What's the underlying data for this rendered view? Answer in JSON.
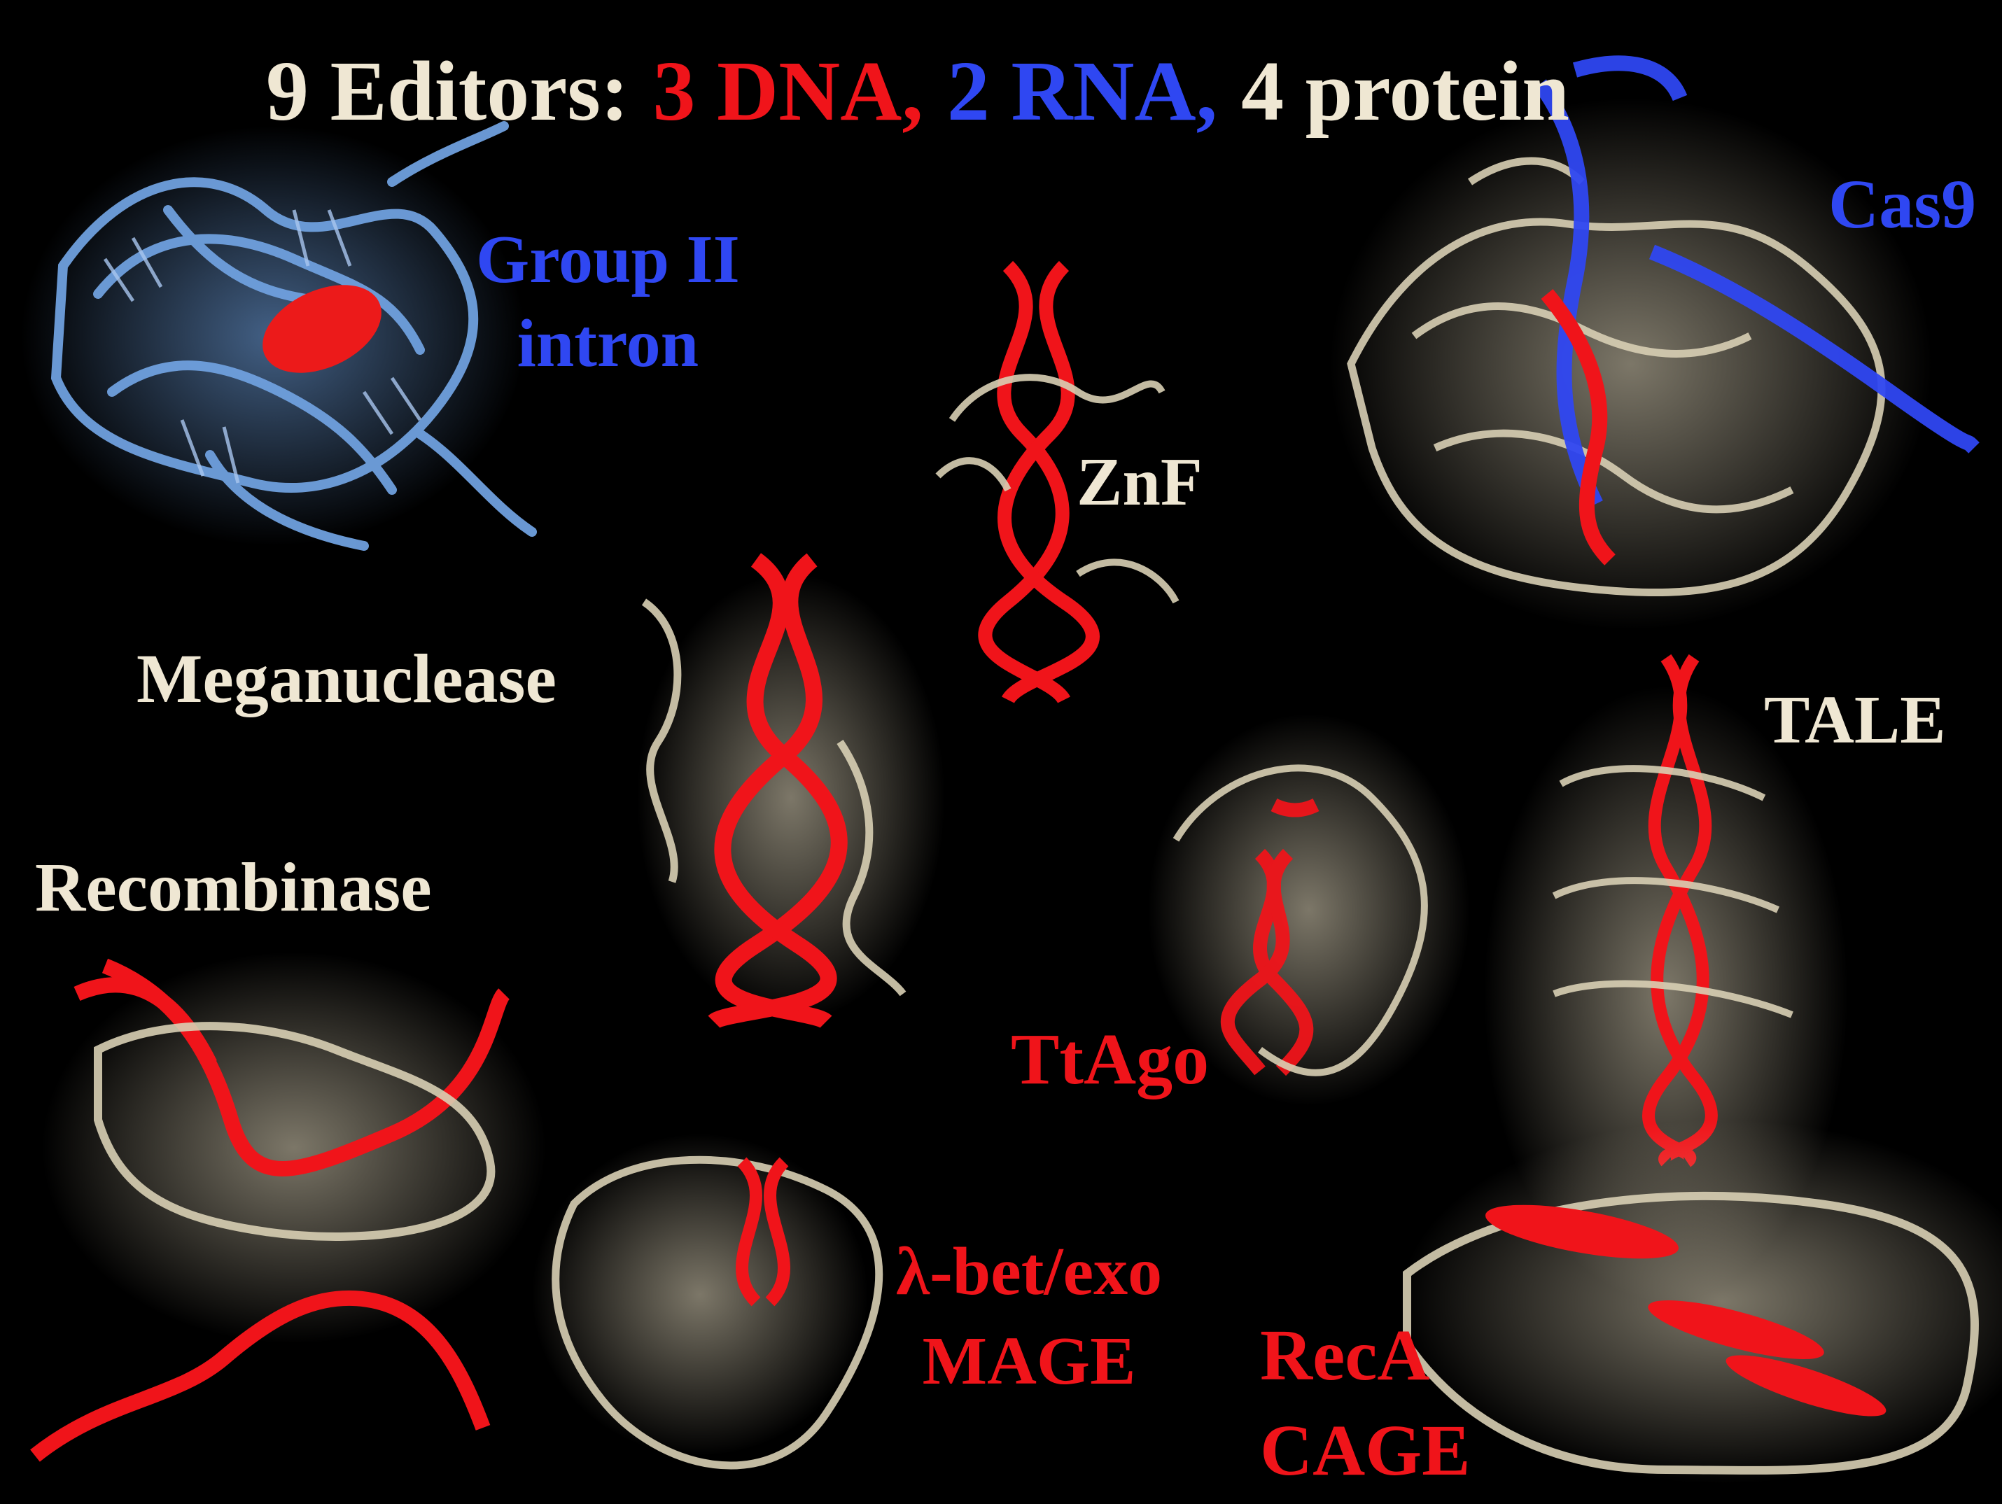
{
  "title": {
    "part1": "9 Editors:",
    "part2": "3 DNA,",
    "part3": "2 RNA,",
    "part4": "4 protein"
  },
  "labels": {
    "group_ii_line1": "Group II",
    "group_ii_line2": "intron",
    "cas9": "Cas9",
    "znf": "ZnF",
    "meganuclease": "Meganuclease",
    "tale": "TALE",
    "recombinase": "Recombinase",
    "ttago": "TtAgo",
    "lambda_line1": "λ-bet/exo",
    "lambda_line2": "MAGE",
    "reca_line1": "RecA",
    "reca_line2": "CAGE"
  },
  "colors": {
    "background": "#000000",
    "protein": "#d8cfb4",
    "dna": "#f0141a",
    "rna": "#2f47f2",
    "rna_light": "#6fa0de"
  }
}
